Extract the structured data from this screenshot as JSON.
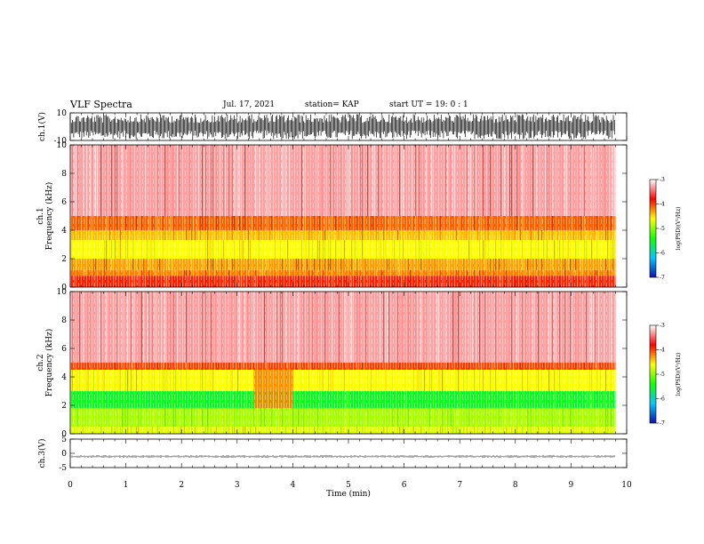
{
  "header": {
    "title": "VLF Spectra",
    "date": "Jul. 17, 2021",
    "station": "station= KAP",
    "start": "start UT =  19: 0  : 1"
  },
  "chart_data": [
    {
      "type": "line",
      "name": "ch1-waveform",
      "ylabel": "ch.1(V)",
      "ylim": [
        -10,
        10
      ],
      "yticks": [
        "10",
        "-10"
      ],
      "x_range_min": [
        0,
        9.8
      ],
      "level_min": -9,
      "level_max": 9
    },
    {
      "type": "heatmap",
      "name": "ch1-spectrogram",
      "ylabel": "ch.1\nFrequency (kHz)",
      "ylabel_lines": [
        "ch.1",
        "Frequency (kHz)"
      ],
      "ylim": [
        0,
        10
      ],
      "yticks": [
        "0",
        "2",
        "4",
        "6",
        "8",
        "10"
      ],
      "x_range_min": [
        0,
        9.8
      ],
      "bands_khz": [
        {
          "from": 0,
          "to": 0.8,
          "logPSD": -3.9
        },
        {
          "from": 0.8,
          "to": 1.2,
          "logPSD": -4.2
        },
        {
          "from": 1.2,
          "to": 2.0,
          "logPSD": -4.3
        },
        {
          "from": 2.0,
          "to": 3.3,
          "logPSD": -4.6
        },
        {
          "from": 3.3,
          "to": 4.0,
          "logPSD": -4.4
        },
        {
          "from": 4.0,
          "to": 5.0,
          "logPSD": -4.1
        },
        {
          "from": 5.0,
          "to": 10.0,
          "logPSD": -3.3
        }
      ]
    },
    {
      "type": "heatmap",
      "name": "ch2-spectrogram",
      "ylabel": "ch.2\nFrequency (kHz)",
      "ylabel_lines": [
        "ch.2",
        "Frequency (kHz)"
      ],
      "ylim": [
        0,
        10
      ],
      "yticks": [
        "0",
        "2",
        "4",
        "6",
        "8",
        "10"
      ],
      "x_range_min": [
        0,
        9.8
      ],
      "bands_khz": [
        {
          "from": 0,
          "to": 0.5,
          "logPSD": -4.7
        },
        {
          "from": 0.5,
          "to": 1.8,
          "logPSD": -4.9
        },
        {
          "from": 1.8,
          "to": 3.0,
          "logPSD": -5.5
        },
        {
          "from": 3.0,
          "to": 4.5,
          "logPSD": -4.6
        },
        {
          "from": 4.5,
          "to": 5.0,
          "logPSD": -4.0
        },
        {
          "from": 5.0,
          "to": 10.0,
          "logPSD": -3.3
        }
      ],
      "quiet_interval_min": [
        3.3,
        4.0
      ]
    },
    {
      "type": "line",
      "name": "ch3-waveform",
      "ylabel": "ch.3(V)",
      "ylim": [
        -5,
        5
      ],
      "yticks": [
        "5",
        "0",
        "-5"
      ],
      "x_range_min": [
        0,
        9.8
      ],
      "level_min": -1.6,
      "level_max": -0.6
    }
  ],
  "colorbar": {
    "label": "log(PSD)(V²/Hz)",
    "ticks": [
      "-3",
      "-4",
      "-5",
      "-6",
      "-7"
    ],
    "range": [
      -7,
      -3
    ],
    "stops": [
      "#1010b0",
      "#00c8ff",
      "#10ff00",
      "#ffff00",
      "#ff0000",
      "#ffffff"
    ]
  },
  "x_axis": {
    "label": "Time (min)",
    "ticks": [
      "0",
      "1",
      "2",
      "3",
      "4",
      "5",
      "6",
      "7",
      "8",
      "9",
      "10"
    ],
    "range": [
      0,
      10
    ]
  }
}
